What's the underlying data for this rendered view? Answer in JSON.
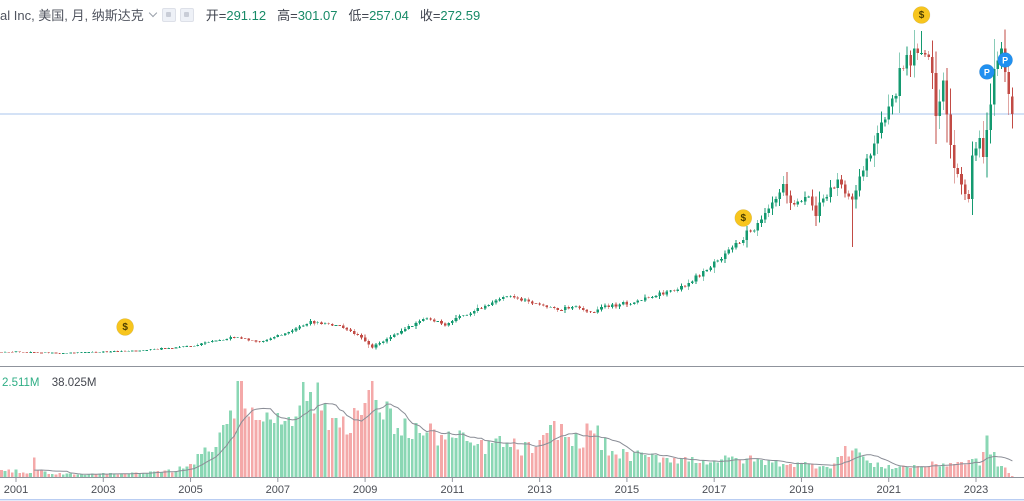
{
  "header": {
    "title": "al Inc, 美国, 月, 纳斯达克",
    "ohlc": [
      {
        "label": "开=",
        "value": "291.12"
      },
      {
        "label": "高=",
        "value": "301.07"
      },
      {
        "label": "低=",
        "value": "257.04"
      },
      {
        "label": "收=",
        "value": "272.59"
      }
    ]
  },
  "volume_legend": {
    "current": "2.511M",
    "ma": "38.025M"
  },
  "x_axis": {
    "years": [
      "2001",
      "2003",
      "2005",
      "2007",
      "2009",
      "2011",
      "2013",
      "2015",
      "2017",
      "2019",
      "2021",
      "2023"
    ]
  },
  "colors": {
    "candle_up": "#149a70",
    "candle_down": "#c24b45",
    "volume_up": "#8ad7b4",
    "volume_down": "#f4a9a9",
    "volume_ma": "#8a8d96",
    "price_line": "#a9c4ee",
    "divider": "#8f939c",
    "tick": "#9598a1",
    "axis_label": "#4b4e55",
    "bottom_line": "#b9cdf2",
    "marker_dollar_bg": "#f7c51e",
    "marker_dollar_text": "#4d3f00",
    "marker_p_bg": "#2090f0",
    "marker_p_text": "#ffffff"
  },
  "chart_data": {
    "type": "candlestick+volume",
    "symbol_info": "al Inc, 美国, 月, 纳斯达克",
    "timeframe": "monthly",
    "x_range_years": [
      2001,
      2023
    ],
    "grid": false,
    "visible_bar_ohlc": {
      "open": 291.12,
      "high": 301.07,
      "low": 257.04,
      "close": 272.59
    },
    "last_price_line": 272.59,
    "volume_current_m": 2.511,
    "volume_ma_m": 38.025,
    "price_keypoints": [
      [
        -4,
        19.5
      ],
      [
        0,
        19.2
      ],
      [
        12,
        18.1
      ],
      [
        24,
        19.2
      ],
      [
        36,
        21.3
      ],
      [
        48,
        25.6
      ],
      [
        60,
        35.1
      ],
      [
        67,
        29.8
      ],
      [
        74,
        39.4
      ],
      [
        81,
        51.1
      ],
      [
        86,
        49.0
      ],
      [
        90,
        45.8
      ],
      [
        95,
        34.1
      ],
      [
        98,
        24.5
      ],
      [
        103,
        35.1
      ],
      [
        108,
        45.8
      ],
      [
        113,
        55.4
      ],
      [
        118,
        47.9
      ],
      [
        122,
        56.4
      ],
      [
        126,
        62.8
      ],
      [
        132,
        74.5
      ],
      [
        136,
        77.7
      ],
      [
        141,
        72.4
      ],
      [
        144,
        70.3
      ],
      [
        149,
        63.9
      ],
      [
        153,
        68.1
      ],
      [
        158,
        60.7
      ],
      [
        162,
        67.1
      ],
      [
        168,
        71.3
      ],
      [
        173,
        75.6
      ],
      [
        178,
        82.0
      ],
      [
        184,
        89.4
      ],
      [
        189,
        104.3
      ],
      [
        194,
        119.3
      ],
      [
        198,
        133.1
      ],
      [
        202,
        149.1
      ],
      [
        205,
        157.6
      ],
      [
        209,
        181.0
      ],
      [
        211,
        193.8
      ],
      [
        214,
        174.6
      ],
      [
        218,
        188.5
      ],
      [
        220,
        168.2
      ],
      [
        222,
        183.2
      ],
      [
        226,
        201.2
      ],
      [
        228,
        190.6
      ],
      [
        230,
        181.0
      ],
      [
        232,
        202.3
      ],
      [
        234,
        223.6
      ],
      [
        235,
        234.2
      ],
      [
        237,
        252.3
      ],
      [
        239,
        264.1
      ],
      [
        240,
        279.0
      ],
      [
        242,
        298.1
      ],
      [
        243,
        319.4
      ],
      [
        245,
        327.9
      ],
      [
        247,
        335.4
      ],
      [
        249,
        346.0
      ],
      [
        250,
        332.2
      ],
      [
        252,
        321.5
      ],
      [
        253,
        271.5
      ],
      [
        255,
        303.4
      ],
      [
        257,
        244.9
      ],
      [
        258,
        218.3
      ],
      [
        260,
        197.0
      ],
      [
        262,
        181.0
      ],
      [
        263,
        223.6
      ],
      [
        265,
        244.9
      ],
      [
        266,
        225.7
      ],
      [
        268,
        276.9
      ],
      [
        269,
        319.4
      ],
      [
        271,
        340.7
      ],
      [
        272,
        314.1
      ],
      [
        273,
        290.7
      ],
      [
        274,
        272.59
      ]
    ],
    "overrides": {
      "230": {
        "low": 131.0
      },
      "249": {
        "high": 361.0
      },
      "271": {
        "high": 349.0
      },
      "274": {
        "open": 291.12,
        "high": 301.07,
        "low": 257.04,
        "close": 272.59
      }
    },
    "volume_keypoints_m": [
      [
        0,
        18
      ],
      [
        4,
        12
      ],
      [
        5,
        70
      ],
      [
        6,
        20
      ],
      [
        10,
        10
      ],
      [
        18,
        8
      ],
      [
        26,
        10
      ],
      [
        36,
        12
      ],
      [
        44,
        20
      ],
      [
        50,
        55
      ],
      [
        55,
        110
      ],
      [
        58,
        180
      ],
      [
        61,
        280
      ],
      [
        63,
        185
      ],
      [
        66,
        220
      ],
      [
        68,
        165
      ],
      [
        70,
        180
      ],
      [
        74,
        195
      ],
      [
        78,
        220
      ],
      [
        81,
        265
      ],
      [
        84,
        205
      ],
      [
        88,
        165
      ],
      [
        92,
        180
      ],
      [
        96,
        205
      ],
      [
        99,
        265
      ],
      [
        101,
        190
      ],
      [
        106,
        150
      ],
      [
        111,
        135
      ],
      [
        117,
        125
      ],
      [
        122,
        112
      ],
      [
        128,
        90
      ],
      [
        133,
        105
      ],
      [
        139,
        85
      ],
      [
        144,
        90
      ],
      [
        149,
        155
      ],
      [
        153,
        100
      ],
      [
        159,
        145
      ],
      [
        163,
        75
      ],
      [
        169,
        65
      ],
      [
        174,
        60
      ],
      [
        183,
        55
      ],
      [
        191,
        48
      ],
      [
        199,
        55
      ],
      [
        207,
        45
      ],
      [
        216,
        38
      ],
      [
        224,
        35
      ],
      [
        230,
        95
      ],
      [
        235,
        36
      ],
      [
        243,
        30
      ],
      [
        251,
        35
      ],
      [
        257,
        42
      ],
      [
        265,
        48
      ],
      [
        267,
        100
      ],
      [
        270,
        40
      ],
      [
        272,
        25
      ],
      [
        274,
        2.5
      ]
    ],
    "markers": [
      {
        "glyph": "$",
        "kind": "dividend",
        "month": 30,
        "price": 45.8
      },
      {
        "glyph": "$",
        "kind": "dividend",
        "month": 200,
        "price": 161.9
      },
      {
        "glyph": "$",
        "kind": "dividend",
        "month": 249,
        "price": 378.0
      },
      {
        "glyph": "P",
        "kind": "split",
        "month": 267,
        "price": 317.4
      },
      {
        "glyph": "P",
        "kind": "split",
        "month": 272,
        "price": 330.1
      }
    ]
  }
}
